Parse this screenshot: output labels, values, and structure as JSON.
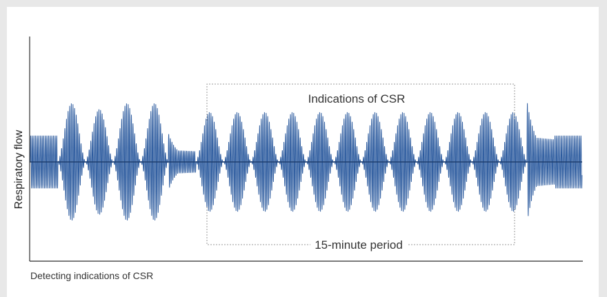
{
  "chart_data": {
    "type": "line",
    "title": "",
    "xlabel": "",
    "ylabel": "Respiratory flow",
    "caption": "Detecting indications of CSR",
    "grid": false,
    "series_color": "#2b5a9e",
    "breaths_per_segment": 17,
    "segments": [
      {
        "name": "baseline-start",
        "pattern": "steady",
        "amplitude": 0.45
      },
      {
        "name": "crescendo-decrescendo-1",
        "pattern": "crescendo-decrescendo",
        "amplitude": 1.0
      },
      {
        "name": "crescendo-decrescendo-2",
        "pattern": "crescendo-decrescendo",
        "amplitude": 0.9
      },
      {
        "name": "crescendo-decrescendo-3",
        "pattern": "crescendo-decrescendo",
        "amplitude": 1.0
      },
      {
        "name": "crescendo-decrescendo-4",
        "pattern": "crescendo-decrescendo",
        "amplitude": 1.0
      },
      {
        "name": "decay-to-steady",
        "pattern": "decay",
        "amplitude": 0.45
      },
      {
        "name": "csr-cycle-1",
        "pattern": "crescendo-decrescendo",
        "amplitude": 0.85
      },
      {
        "name": "csr-cycle-2",
        "pattern": "crescendo-decrescendo",
        "amplitude": 0.85
      },
      {
        "name": "csr-cycle-3",
        "pattern": "crescendo-decrescendo",
        "amplitude": 0.85
      },
      {
        "name": "csr-cycle-4",
        "pattern": "crescendo-decrescendo",
        "amplitude": 0.85
      },
      {
        "name": "csr-cycle-5",
        "pattern": "crescendo-decrescendo",
        "amplitude": 0.85
      },
      {
        "name": "csr-cycle-6",
        "pattern": "crescendo-decrescendo",
        "amplitude": 0.85
      },
      {
        "name": "csr-cycle-7",
        "pattern": "crescendo-decrescendo",
        "amplitude": 0.85
      },
      {
        "name": "csr-cycle-8",
        "pattern": "crescendo-decrescendo",
        "amplitude": 0.85
      },
      {
        "name": "csr-cycle-9",
        "pattern": "crescendo-decrescendo",
        "amplitude": 0.85
      },
      {
        "name": "csr-cycle-10",
        "pattern": "crescendo-decrescendo",
        "amplitude": 0.85
      },
      {
        "name": "csr-cycle-11",
        "pattern": "crescendo-decrescendo",
        "amplitude": 0.85
      },
      {
        "name": "csr-cycle-12",
        "pattern": "crescendo-decrescendo",
        "amplitude": 0.85
      },
      {
        "name": "recovery-decay",
        "pattern": "decay",
        "amplitude": 0.95
      },
      {
        "name": "baseline-end",
        "pattern": "steady",
        "amplitude": 0.45
      }
    ],
    "annotations": {
      "top": "Indications of CSR",
      "bottom": "15-minute period"
    }
  }
}
